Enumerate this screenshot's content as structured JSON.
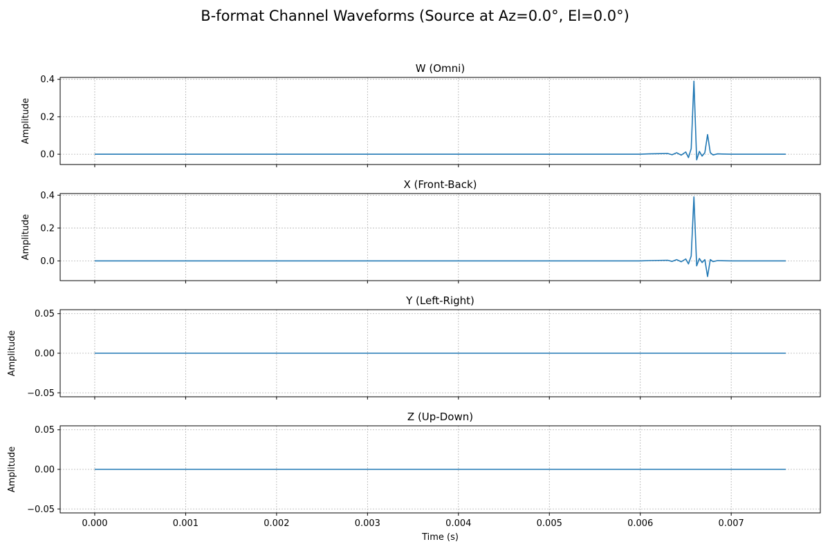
{
  "figure": {
    "title": "B-format Channel Waveforms (Source at Az=0.0°, El=0.0°)"
  },
  "chart_data": [
    {
      "type": "line",
      "title": "W (Omni)",
      "ylabel": "Amplitude",
      "xlabel": "",
      "xlim": [
        -0.00038,
        0.00798
      ],
      "ylim": [
        -0.055,
        0.41
      ],
      "xticks": [
        0.0,
        0.001,
        0.002,
        0.003,
        0.004,
        0.005,
        0.006,
        0.007
      ],
      "xtick_labels": [],
      "yticks": [
        0.0,
        0.2,
        0.4
      ],
      "ytick_labels": [
        "0.0",
        "0.2",
        "0.4"
      ],
      "grid": true,
      "color": "#1f77b4",
      "series": [
        {
          "x": [
            0.0,
            0.006,
            0.0061,
            0.0062,
            0.0063,
            0.00635,
            0.0064,
            0.00645,
            0.0065,
            0.00653,
            0.00656,
            0.00659,
            0.00662,
            0.00665,
            0.00668,
            0.00671,
            0.00674,
            0.00677,
            0.0068,
            0.00685,
            0.0069,
            0.007,
            0.0076
          ],
          "y": [
            0.0,
            0.0,
            0.002,
            0.003,
            0.004,
            -0.003,
            0.008,
            -0.005,
            0.012,
            -0.018,
            0.03,
            0.39,
            -0.03,
            0.015,
            -0.01,
            0.008,
            0.105,
            0.008,
            -0.004,
            0.002,
            0.001,
            0.0,
            0.0
          ]
        }
      ]
    },
    {
      "type": "line",
      "title": "X (Front-Back)",
      "ylabel": "Amplitude",
      "xlabel": "",
      "xlim": [
        -0.00038,
        0.00798
      ],
      "ylim": [
        -0.12,
        0.41
      ],
      "xticks": [
        0.0,
        0.001,
        0.002,
        0.003,
        0.004,
        0.005,
        0.006,
        0.007
      ],
      "xtick_labels": [],
      "yticks": [
        0.0,
        0.2,
        0.4
      ],
      "ytick_labels": [
        "0.0",
        "0.2",
        "0.4"
      ],
      "grid": true,
      "color": "#1f77b4",
      "series": [
        {
          "x": [
            0.0,
            0.006,
            0.0061,
            0.0062,
            0.0063,
            0.00635,
            0.0064,
            0.00645,
            0.0065,
            0.00653,
            0.00656,
            0.00659,
            0.00662,
            0.00665,
            0.00668,
            0.00671,
            0.00674,
            0.00677,
            0.0068,
            0.00685,
            0.0069,
            0.007,
            0.0076
          ],
          "y": [
            0.0,
            0.0,
            0.002,
            0.003,
            0.004,
            -0.003,
            0.008,
            -0.005,
            0.012,
            -0.018,
            0.03,
            0.39,
            -0.03,
            0.015,
            -0.01,
            0.008,
            -0.095,
            0.008,
            -0.004,
            0.002,
            0.001,
            0.0,
            0.0
          ]
        }
      ]
    },
    {
      "type": "line",
      "title": "Y (Left-Right)",
      "ylabel": "Amplitude",
      "xlabel": "",
      "xlim": [
        -0.00038,
        0.00798
      ],
      "ylim": [
        -0.055,
        0.055
      ],
      "xticks": [
        0.0,
        0.001,
        0.002,
        0.003,
        0.004,
        0.005,
        0.006,
        0.007
      ],
      "xtick_labels": [],
      "yticks": [
        -0.05,
        0.0,
        0.05
      ],
      "ytick_labels": [
        "−0.05",
        "0.00",
        "0.05"
      ],
      "grid": true,
      "color": "#1f77b4",
      "series": [
        {
          "x": [
            0.0,
            0.0076
          ],
          "y": [
            0.0,
            0.0
          ]
        }
      ]
    },
    {
      "type": "line",
      "title": "Z (Up-Down)",
      "ylabel": "Amplitude",
      "xlabel": "Time (s)",
      "xlim": [
        -0.00038,
        0.00798
      ],
      "ylim": [
        -0.055,
        0.055
      ],
      "xticks": [
        0.0,
        0.001,
        0.002,
        0.003,
        0.004,
        0.005,
        0.006,
        0.007
      ],
      "xtick_labels": [
        "0.000",
        "0.001",
        "0.002",
        "0.003",
        "0.004",
        "0.005",
        "0.006",
        "0.007"
      ],
      "yticks": [
        -0.05,
        0.0,
        0.05
      ],
      "ytick_labels": [
        "−0.05",
        "0.00",
        "0.05"
      ],
      "grid": true,
      "color": "#1f77b4",
      "series": [
        {
          "x": [
            0.0,
            0.0076
          ],
          "y": [
            0.0,
            0.0
          ]
        }
      ]
    }
  ]
}
